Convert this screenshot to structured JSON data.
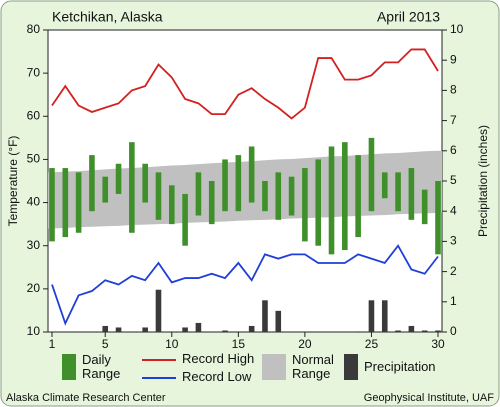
{
  "chart_data": {
    "type": "combo",
    "title": "Ketchikan, Alaska",
    "subtitle": "April 2013",
    "y_label": "Temperature (°F)",
    "y2_label": "Precipitation (inches)",
    "footer_left": "Alaska Climate Research Center",
    "footer_right": "Geophysical Institute, UAF",
    "x": [
      1,
      2,
      3,
      4,
      5,
      6,
      7,
      8,
      9,
      10,
      11,
      12,
      13,
      14,
      15,
      16,
      17,
      18,
      19,
      20,
      21,
      22,
      23,
      24,
      25,
      26,
      27,
      28,
      29,
      30
    ],
    "xlim": [
      0.7,
      30.3
    ],
    "xticks": [
      1,
      5,
      10,
      15,
      20,
      25,
      30
    ],
    "ylim": [
      10,
      80
    ],
    "yticks": [
      10,
      20,
      30,
      40,
      50,
      60,
      70,
      80
    ],
    "y2lim": [
      0,
      10
    ],
    "y2ticks": [
      0,
      1,
      2,
      3,
      4,
      5,
      6,
      7,
      8,
      9,
      10
    ],
    "grid": false,
    "series": [
      {
        "name": "Normal Range",
        "type": "band",
        "color": "#c0c0c0",
        "low": [
          34,
          34.1,
          34.3,
          34.4,
          34.5,
          34.6,
          34.8,
          34.9,
          35,
          35.1,
          35.3,
          35.4,
          35.5,
          35.6,
          35.8,
          35.9,
          36,
          36.1,
          36.3,
          36.4,
          36.5,
          36.6,
          36.8,
          36.9,
          37,
          37.1,
          37.3,
          37.4,
          37.5,
          37.6
        ],
        "high": [
          47,
          47.2,
          47.3,
          47.5,
          47.7,
          47.9,
          48,
          48.2,
          48.4,
          48.6,
          48.7,
          48.9,
          49.1,
          49.3,
          49.4,
          49.6,
          49.8,
          50,
          50.1,
          50.3,
          50.5,
          50.7,
          50.8,
          51,
          51.2,
          51.4,
          51.5,
          51.7,
          51.9,
          52
        ]
      },
      {
        "name": "Daily Range",
        "type": "range",
        "color": "#3f8f2a",
        "low": [
          31,
          32,
          33,
          38,
          40,
          42,
          33,
          40,
          36,
          35,
          30,
          37,
          35,
          38,
          38,
          40,
          38,
          36,
          37,
          31,
          30,
          28,
          29,
          32,
          38,
          41,
          38,
          36,
          35,
          28
        ],
        "high": [
          48,
          48,
          47,
          51,
          46,
          49,
          54,
          49,
          47,
          44,
          42,
          47,
          45,
          50,
          51,
          53,
          45,
          47,
          46,
          48,
          50,
          53,
          54,
          51,
          55,
          47,
          47,
          48,
          43,
          45
        ]
      },
      {
        "name": "Record High",
        "type": "line",
        "color": "#d42020",
        "values": [
          62.5,
          67,
          62.5,
          61,
          62,
          63,
          66,
          67,
          72,
          69,
          64,
          63,
          60.5,
          60.5,
          65,
          66.5,
          64,
          62,
          59.5,
          62,
          73.5,
          73.5,
          68.5,
          68.5,
          69.5,
          72.5,
          72.5,
          75.5,
          75.5,
          70.5
        ]
      },
      {
        "name": "Record Low",
        "type": "line",
        "color": "#1f3fd8",
        "values": [
          21,
          12,
          18.5,
          19.5,
          22,
          21,
          23,
          22,
          26,
          21.5,
          22.5,
          22.5,
          23.5,
          22.5,
          26,
          22,
          28,
          27,
          28,
          28,
          26,
          26,
          26,
          28,
          27,
          26,
          30,
          24.5,
          23.5,
          27.5
        ]
      },
      {
        "name": "Precipitation",
        "type": "bar",
        "axis": "y2",
        "color": "#3a3a3a",
        "values": [
          0,
          0,
          0,
          0,
          0.2,
          0.15,
          0,
          0.15,
          1.4,
          0,
          0.15,
          0.3,
          0,
          0.05,
          0,
          0.2,
          1.05,
          0.7,
          0,
          0,
          0,
          0,
          0,
          0.02,
          1.05,
          1.05,
          0.05,
          0.2,
          0.05,
          0.05
        ]
      }
    ]
  }
}
